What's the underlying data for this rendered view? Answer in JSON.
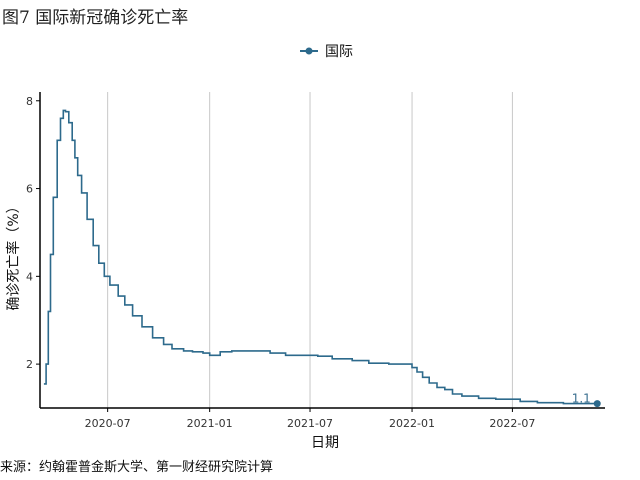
{
  "figure": {
    "title": "图7 国际新冠确诊死亡率",
    "source": "来源：约翰霍普金斯大学、第一财经研究院计算"
  },
  "chart_data": {
    "type": "line",
    "xlabel": "日期",
    "ylabel": "确诊死亡率（%）",
    "legend": {
      "position": "top",
      "entries": [
        "国际"
      ]
    },
    "grid": {
      "vertical": true,
      "horizontal": false
    },
    "colors": {
      "series": "#2d6a8c",
      "grid": "#c8c8c8",
      "axis": "#000000"
    },
    "xlim": [
      "2020-03-01",
      "2022-12-15"
    ],
    "ylim": [
      1.0,
      8.2
    ],
    "x_ticks": [
      "2020-07-01",
      "2021-01-01",
      "2021-07-01",
      "2022-01-01",
      "2022-07-01"
    ],
    "x_tick_labels": [
      "2020-07",
      "2021-01",
      "2021-07",
      "2022-01",
      "2022-07"
    ],
    "y_ticks": [
      2,
      4,
      6,
      8
    ],
    "end_label": "1.1",
    "series": [
      {
        "name": "国际",
        "x": [
          "2020-03-08",
          "2020-03-12",
          "2020-03-16",
          "2020-03-20",
          "2020-03-25",
          "2020-04-01",
          "2020-04-07",
          "2020-04-12",
          "2020-04-16",
          "2020-04-22",
          "2020-04-28",
          "2020-05-03",
          "2020-05-08",
          "2020-05-15",
          "2020-05-25",
          "2020-06-05",
          "2020-06-15",
          "2020-06-25",
          "2020-07-05",
          "2020-07-20",
          "2020-08-01",
          "2020-08-15",
          "2020-09-01",
          "2020-09-20",
          "2020-10-10",
          "2020-10-25",
          "2020-11-15",
          "2020-12-01",
          "2020-12-20",
          "2021-01-01",
          "2021-01-20",
          "2021-02-10",
          "2021-03-15",
          "2021-04-20",
          "2021-05-18",
          "2021-05-30",
          "2021-06-20",
          "2021-07-15",
          "2021-08-10",
          "2021-09-15",
          "2021-10-15",
          "2021-11-20",
          "2021-12-15",
          "2022-01-01",
          "2022-01-10",
          "2022-01-20",
          "2022-02-01",
          "2022-02-15",
          "2022-03-01",
          "2022-03-15",
          "2022-04-01",
          "2022-05-01",
          "2022-06-01",
          "2022-07-01",
          "2022-07-15",
          "2022-08-15",
          "2022-10-01",
          "2022-11-10",
          "2022-12-01"
        ],
        "values": [
          1.55,
          2.0,
          3.2,
          4.5,
          5.8,
          7.1,
          7.6,
          7.78,
          7.75,
          7.5,
          7.1,
          6.7,
          6.3,
          5.9,
          5.3,
          4.7,
          4.3,
          4.0,
          3.8,
          3.55,
          3.35,
          3.1,
          2.85,
          2.6,
          2.45,
          2.35,
          2.3,
          2.28,
          2.25,
          2.2,
          2.28,
          2.3,
          2.3,
          2.25,
          2.2,
          2.2,
          2.2,
          2.18,
          2.12,
          2.08,
          2.02,
          2.0,
          2.0,
          1.92,
          1.82,
          1.7,
          1.57,
          1.47,
          1.42,
          1.32,
          1.27,
          1.22,
          1.2,
          1.2,
          1.15,
          1.12,
          1.1,
          1.1,
          1.1
        ]
      }
    ]
  }
}
